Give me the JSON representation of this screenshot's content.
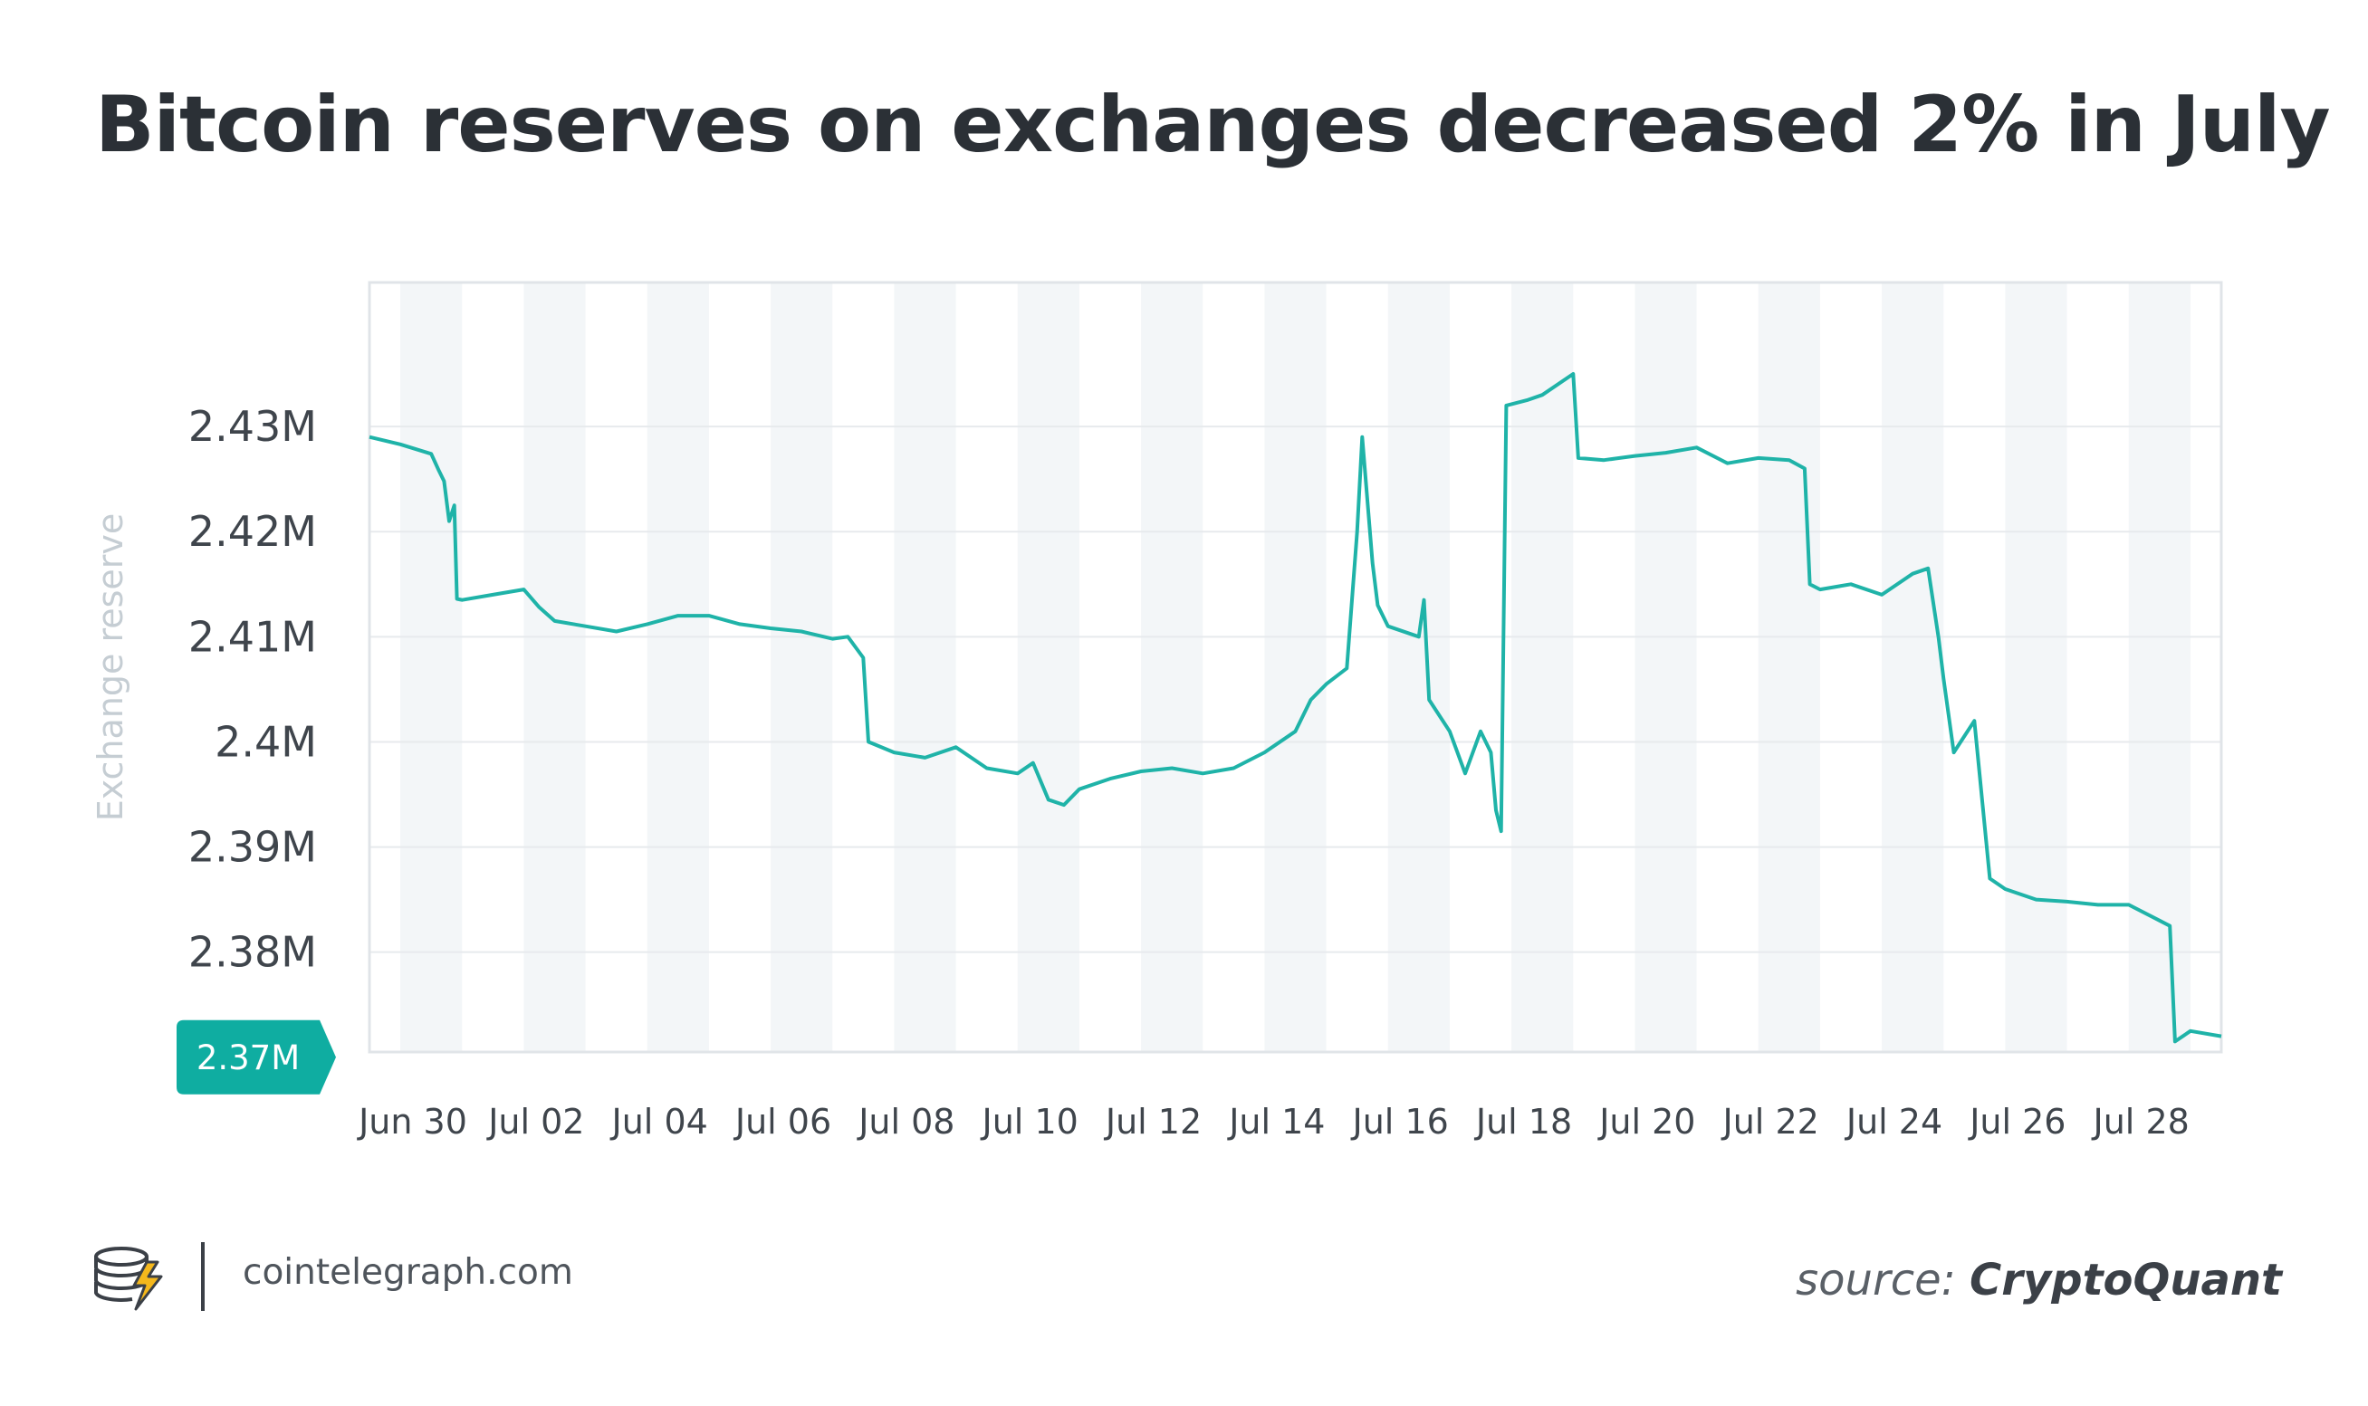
{
  "title": "Bitcoin reserves on exchanges decreased 2% in July",
  "footer": {
    "site": "cointelegraph.com",
    "source_prefix": "source:",
    "source_name": "CryptoQuant",
    "logo_icon": "cointelegraph-coin-stack-logo-icon"
  },
  "colors": {
    "line": "#1fb3a8",
    "badge": "#0fada1",
    "band": "#f3f6f8",
    "grid": "#e7eaed",
    "axis_title": "#c5cdd3",
    "tick": "#3f454c"
  },
  "chart_data": {
    "type": "line",
    "ylabel": "Exchange reserve",
    "x_ticks": [
      "Jun 30",
      "Jul 02",
      "Jul 04",
      "Jul 06",
      "Jul 08",
      "Jul 10",
      "Jul 12",
      "Jul 14",
      "Jul 16",
      "Jul 18",
      "Jul 20",
      "Jul 22",
      "Jul 24",
      "Jul 26",
      "Jul 28"
    ],
    "y_ticks": [
      "2.43M",
      "2.42M",
      "2.41M",
      "2.4M",
      "2.39M",
      "2.38M"
    ],
    "y_tick_values": [
      2.43,
      2.42,
      2.41,
      2.4,
      2.39,
      2.38
    ],
    "ylim": [
      2.3705,
      2.4437
    ],
    "xlim": [
      "Jun 30",
      "Jul 30"
    ],
    "current_value": 2.37,
    "current_label": "2.37M",
    "grid": true,
    "shaded_alternate_days": true,
    "series": [
      {
        "unit": "M BTC",
        "points": [
          [
            "Jun 30",
            2.429
          ],
          [
            "Jun 30 12:00",
            2.4283
          ],
          [
            "Jul 01 00:00",
            2.4274
          ],
          [
            "Jul 01 03:00",
            2.4258
          ],
          [
            "Jul 01 05:00",
            2.4248
          ],
          [
            "Jul 01 07:00",
            2.421
          ],
          [
            "Jul 01 09:00",
            2.4225
          ],
          [
            "Jul 01 10:00",
            2.4136
          ],
          [
            "Jul 01 12:00",
            2.4135
          ],
          [
            "Jul 02 00:00",
            2.414
          ],
          [
            "Jul 02 12:00",
            2.4145
          ],
          [
            "Jul 02 18:00",
            2.4128
          ],
          [
            "Jul 03 00:00",
            2.4115
          ],
          [
            "Jul 03 12:00",
            2.411
          ],
          [
            "Jul 04 00:00",
            2.4105
          ],
          [
            "Jul 04 12:00",
            2.4112
          ],
          [
            "Jul 05 00:00",
            2.412
          ],
          [
            "Jul 05 12:00",
            2.412
          ],
          [
            "Jul 06 00:00",
            2.4112
          ],
          [
            "Jul 06 12:00",
            2.4108
          ],
          [
            "Jul 07 00:00",
            2.4105
          ],
          [
            "Jul 07 12:00",
            2.4098
          ],
          [
            "Jul 07 18:00",
            2.41
          ],
          [
            "Jul 08 00:00",
            2.408
          ],
          [
            "Jul 08 02:00",
            2.4
          ],
          [
            "Jul 08 12:00",
            2.399
          ],
          [
            "Jul 09 00:00",
            2.3985
          ],
          [
            "Jul 09 12:00",
            2.3995
          ],
          [
            "Jul 10 00:00",
            2.3975
          ],
          [
            "Jul 10 12:00",
            2.397
          ],
          [
            "Jul 10 18:00",
            2.398
          ],
          [
            "Jul 11 00:00",
            2.3945
          ],
          [
            "Jul 11 06:00",
            2.394
          ],
          [
            "Jul 11 12:00",
            2.3955
          ],
          [
            "Jul 12 00:00",
            2.3965
          ],
          [
            "Jul 12 12:00",
            2.3972
          ],
          [
            "Jul 13 00:00",
            2.3975
          ],
          [
            "Jul 13 12:00",
            2.397
          ],
          [
            "Jul 14 00:00",
            2.3975
          ],
          [
            "Jul 14 12:00",
            2.399
          ],
          [
            "Jul 15 00:00",
            2.401
          ],
          [
            "Jul 15 06:00",
            2.404
          ],
          [
            "Jul 15 12:00",
            2.4055
          ],
          [
            "Jul 15 20:00",
            2.407
          ],
          [
            "Jul 16 00:00",
            2.42
          ],
          [
            "Jul 16 02:00",
            2.429
          ],
          [
            "Jul 16 06:00",
            2.417
          ],
          [
            "Jul 16 08:00",
            2.413
          ],
          [
            "Jul 16 12:00",
            2.411
          ],
          [
            "Jul 17 00:00",
            2.41
          ],
          [
            "Jul 17 02:00",
            2.4135
          ],
          [
            "Jul 17 04:00",
            2.404
          ],
          [
            "Jul 17 12:00",
            2.401
          ],
          [
            "Jul 17 18:00",
            2.397
          ],
          [
            "Jul 18 00:00",
            2.401
          ],
          [
            "Jul 18 04:00",
            2.399
          ],
          [
            "Jul 18 06:00",
            2.3935
          ],
          [
            "Jul 18 08:00",
            2.3915
          ],
          [
            "Jul 18 10:00",
            2.432
          ],
          [
            "Jul 18 18:00",
            2.4325
          ],
          [
            "Jul 19 00:00",
            2.433
          ],
          [
            "Jul 19 12:00",
            2.435
          ],
          [
            "Jul 19 14:00",
            2.427
          ],
          [
            "Jul 20 00:00",
            2.4268
          ],
          [
            "Jul 20 12:00",
            2.4272
          ],
          [
            "Jul 21 00:00",
            2.4275
          ],
          [
            "Jul 21 12:00",
            2.428
          ],
          [
            "Jul 22 00:00",
            2.4265
          ],
          [
            "Jul 22 12:00",
            2.427
          ],
          [
            "Jul 23 00:00",
            2.4268
          ],
          [
            "Jul 23 06:00",
            2.426
          ],
          [
            "Jul 23 08:00",
            2.415
          ],
          [
            "Jul 23 12:00",
            2.4145
          ],
          [
            "Jul 24 00:00",
            2.415
          ],
          [
            "Jul 24 12:00",
            2.414
          ],
          [
            "Jul 25 00:00",
            2.416
          ],
          [
            "Jul 25 06:00",
            2.4165
          ],
          [
            "Jul 25 10:00",
            2.41
          ],
          [
            "Jul 25 12:00",
            2.406
          ],
          [
            "Jul 25 16:00",
            2.399
          ],
          [
            "Jul 26 00:00",
            2.402
          ],
          [
            "Jul 26 06:00",
            2.387
          ],
          [
            "Jul 26 12:00",
            2.386
          ],
          [
            "Jul 27 00:00",
            2.385
          ],
          [
            "Jul 27 12:00",
            2.3848
          ],
          [
            "Jul 28 00:00",
            2.3845
          ],
          [
            "Jul 28 12:00",
            2.3845
          ],
          [
            "Jul 29 00:00",
            2.383
          ],
          [
            "Jul 29 04:00",
            2.3825
          ],
          [
            "Jul 29 06:00",
            2.3715
          ],
          [
            "Jul 29 12:00",
            2.3725
          ],
          [
            "Jul 30 00:00",
            2.372
          ]
        ]
      }
    ]
  }
}
